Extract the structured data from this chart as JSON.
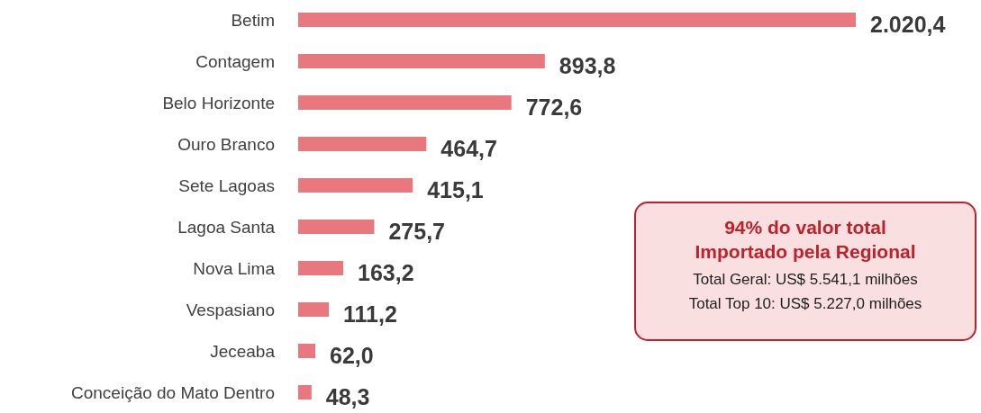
{
  "chart_data": {
    "type": "bar",
    "orientation": "horizontal",
    "categories": [
      "Betim",
      "Contagem",
      "Belo Horizonte",
      "Ouro Branco",
      "Sete Lagoas",
      "Lagoa Santa",
      "Nova Lima",
      "Vespasiano",
      "Jeceaba",
      "Conceição do Mato Dentro"
    ],
    "values": [
      2020.4,
      893.8,
      772.6,
      464.7,
      415.1,
      275.7,
      163.2,
      111.2,
      62.0,
      48.3
    ],
    "value_labels": [
      "2.020,4",
      "893,8",
      "772,6",
      "464,7",
      "415,1",
      "275,7",
      "163,2",
      "111,2",
      "62,0",
      "48,3"
    ],
    "color": "#e8787e",
    "annotations": [
      "94% do valor total",
      "Importado pela Regional",
      "Total Geral: US$ 5.541,1 milhões",
      "Total Top 10: US$ 5.227,0 milhões"
    ]
  }
}
